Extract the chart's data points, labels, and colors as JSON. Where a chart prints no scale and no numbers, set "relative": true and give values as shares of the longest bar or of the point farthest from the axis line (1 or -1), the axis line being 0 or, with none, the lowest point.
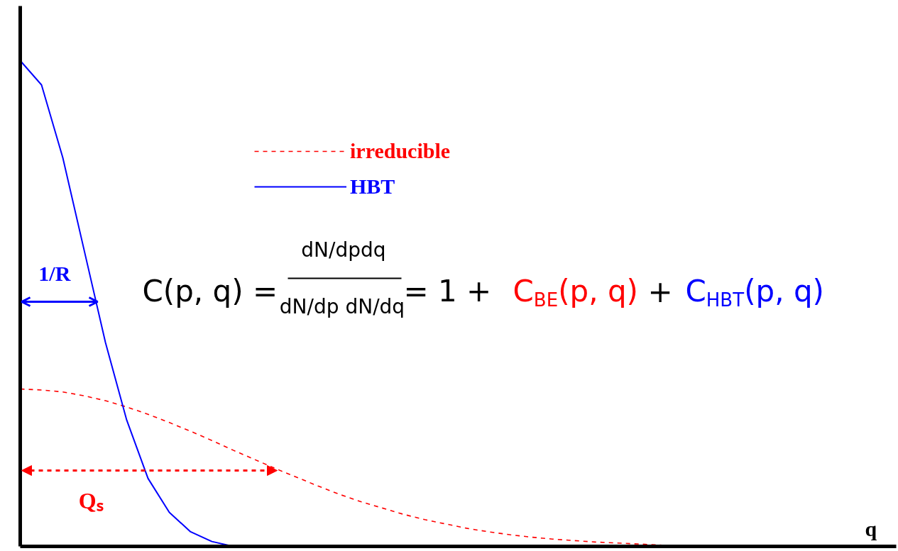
{
  "chart_data": {
    "type": "line",
    "relative": true,
    "xlabel": "q",
    "legend": "top",
    "grid": false,
    "categories": [
      null,
      null,
      null,
      null,
      null,
      null,
      null,
      null,
      null,
      null,
      null,
      null,
      null,
      null,
      null,
      null,
      null,
      null,
      null,
      null,
      null,
      null,
      null,
      null,
      null,
      null,
      null,
      null,
      null,
      null,
      null,
      null,
      null,
      null,
      null,
      null,
      null,
      null,
      null,
      null,
      null
    ],
    "series": [
      {
        "name": "irreducible",
        "color": "#ff0000",
        "line_style": "dashed",
        "values": [
          0.324,
          0.322,
          0.318,
          0.31,
          0.3,
          0.287,
          0.272,
          0.255,
          0.237,
          0.218,
          0.198,
          0.179,
          0.16,
          0.142,
          0.124,
          0.107,
          0.092,
          0.079,
          0.066,
          0.055,
          0.046,
          0.037,
          0.03,
          0.024,
          0.019,
          0.015,
          0.012,
          0.009,
          0.007,
          0.005,
          0.003,
          0,
          null,
          null,
          null,
          null,
          null,
          null,
          null,
          null,
          null
        ]
      },
      {
        "name": "HBT",
        "color": "#0000ff",
        "line_style": "solid",
        "values": [
          1.0,
          0.95,
          0.8,
          0.61,
          0.42,
          0.26,
          0.14,
          0.07,
          0.03,
          0.01,
          0,
          null,
          null,
          null,
          null,
          null,
          null,
          null,
          null,
          null,
          null,
          null,
          null,
          null,
          null,
          null,
          null,
          null,
          null,
          null,
          null,
          null,
          null,
          null,
          null,
          null,
          null,
          null,
          null,
          null,
          null
        ]
      }
    ],
    "annotations": [
      "C(p, q) =",
      "dN/dpdq",
      "dN/dp dN/dq",
      "= 1 +",
      "C$_{BE}$(p, q)",
      "+",
      "C$_{HBT}$(p, q)",
      "1/R",
      "Qₛ"
    ]
  }
}
